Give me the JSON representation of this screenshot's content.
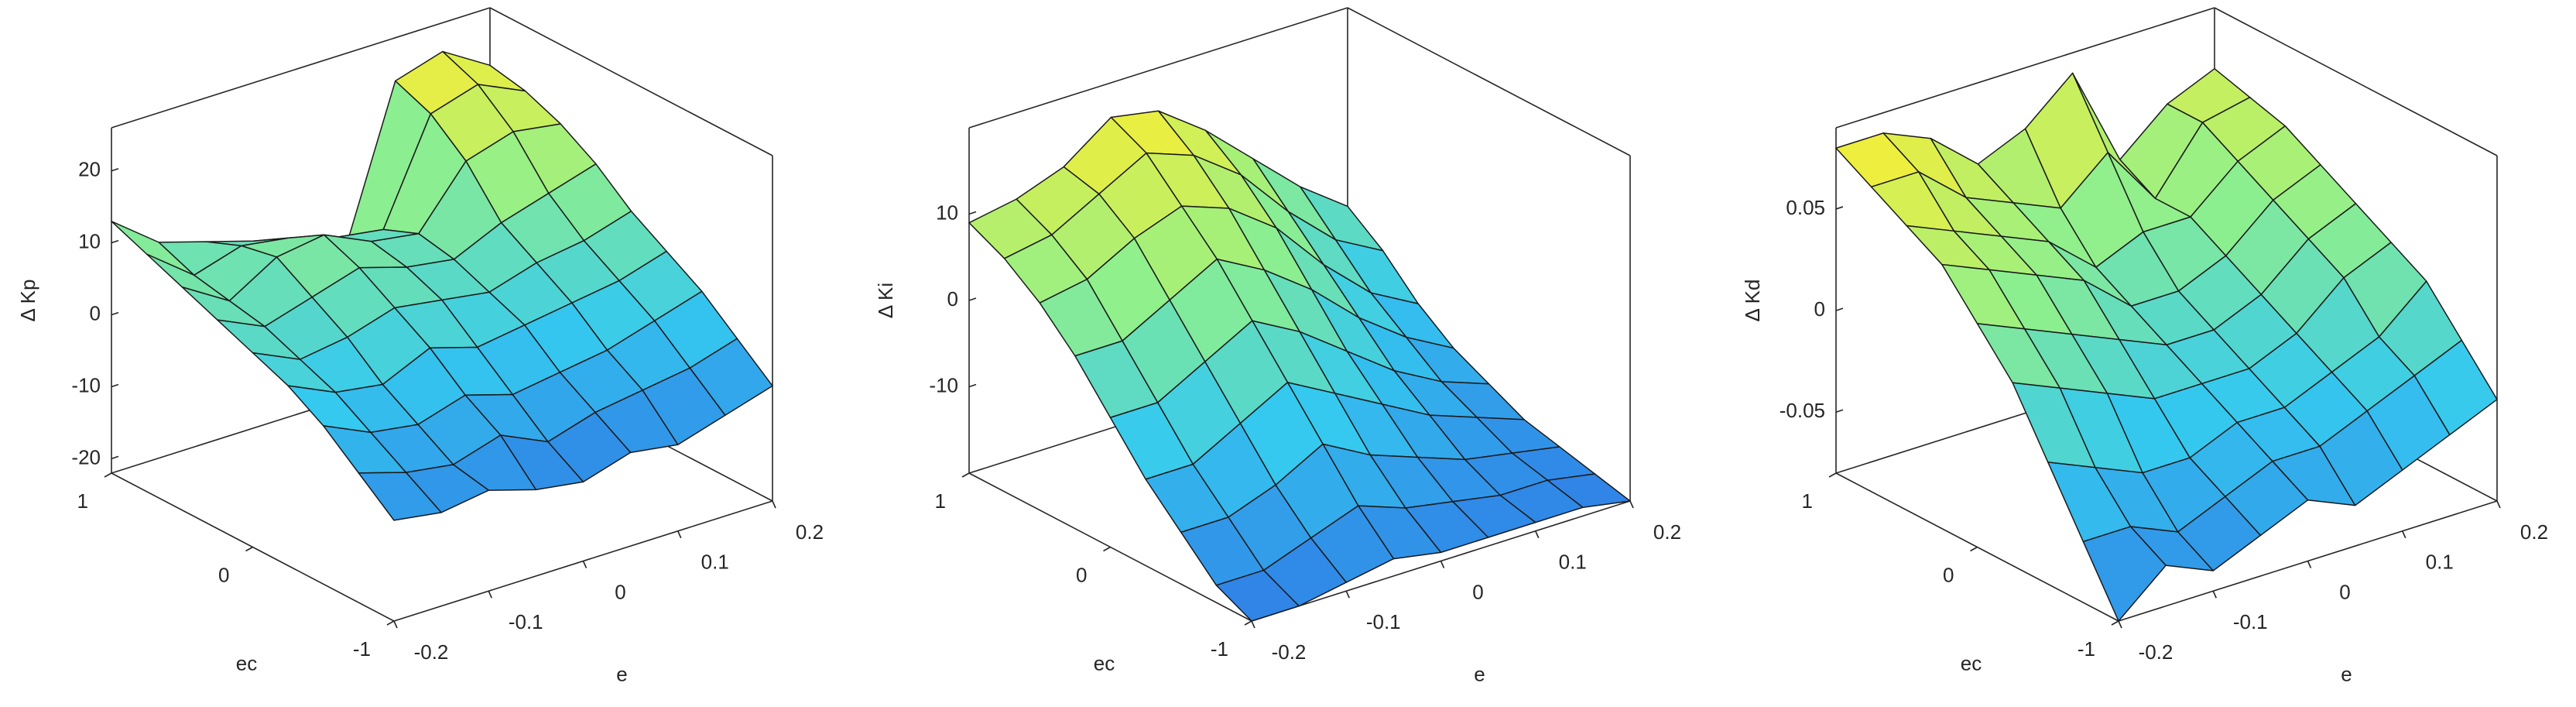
{
  "chart_data": [
    {
      "type": "surface",
      "xlabel": "e",
      "ylabel": "ec",
      "zlabel": "Δ Kp",
      "x": [
        -0.2,
        -0.15,
        -0.1,
        -0.05,
        0,
        0.05,
        0.1,
        0.15,
        0.2
      ],
      "y": [
        -1,
        -0.75,
        -0.5,
        -0.25,
        0,
        0.25,
        0.5,
        0.75,
        1
      ],
      "z": [
        [
          -8,
          -9,
          -8,
          -10,
          -11,
          -9,
          -10,
          -8,
          -6
        ],
        [
          -4,
          -6,
          -7,
          -5,
          -8,
          -6,
          -5,
          -4,
          -2
        ],
        [
          0,
          -3,
          -4,
          -2,
          -4,
          -3,
          -2,
          0,
          2
        ],
        [
          3,
          0,
          -1,
          2,
          0,
          1,
          2,
          3,
          5
        ],
        [
          5,
          2,
          3,
          5,
          4,
          3,
          5,
          6,
          8
        ],
        [
          7,
          4,
          6,
          8,
          6,
          5,
          8,
          10,
          12
        ],
        [
          9,
          5,
          9,
          10,
          7,
          6,
          14,
          16,
          15
        ],
        [
          11,
          6,
          8,
          7,
          5,
          4,
          18,
          20,
          17
        ],
        [
          13,
          8,
          6,
          4,
          2,
          0,
          20,
          22,
          18
        ]
      ],
      "xlim": [
        -0.2,
        0.2
      ],
      "ylim": [
        -1,
        1
      ],
      "zlim": [
        -22,
        26
      ],
      "xticks": [
        -0.2,
        -0.1,
        0,
        0.1,
        0.2
      ],
      "yticks": [
        -1,
        0,
        1
      ],
      "zticks": [
        -20,
        -10,
        0,
        10,
        20
      ],
      "colormap": [
        "#2f7fe6",
        "#35c9ef",
        "#8ff08c",
        "#f8ee36"
      ],
      "box": true
    },
    {
      "type": "surface",
      "xlabel": "e",
      "ylabel": "ec",
      "zlabel": "Δ Ki",
      "x": [
        -0.2,
        -0.15,
        -0.1,
        -0.05,
        0,
        0.05,
        0.1,
        0.15,
        0.2
      ],
      "y": [
        -1,
        -0.75,
        -0.5,
        -0.25,
        0,
        0.25,
        0.5,
        0.75,
        1
      ],
      "z": [
        [
          -20,
          -20,
          -19,
          -18,
          -19,
          -19,
          -19,
          -19,
          -20
        ],
        [
          -18,
          -18,
          -16,
          -14,
          -16,
          -17,
          -18,
          -18,
          -19
        ],
        [
          -14,
          -14,
          -12,
          -9,
          -12,
          -14,
          -16,
          -17,
          -18
        ],
        [
          -10,
          -10,
          -7,
          -4,
          -7,
          -10,
          -13,
          -15,
          -17
        ],
        [
          -5,
          -5,
          -2,
          1,
          -2,
          -6,
          -10,
          -13,
          -15
        ],
        [
          0,
          0,
          3,
          6,
          3,
          -1,
          -6,
          -10,
          -13
        ],
        [
          4,
          5,
          8,
          10,
          8,
          4,
          -2,
          -7,
          -10
        ],
        [
          7,
          8,
          11,
          14,
          12,
          8,
          2,
          -3,
          -6
        ],
        [
          9,
          10,
          12,
          16,
          15,
          11,
          6,
          1,
          -3
        ]
      ],
      "xlim": [
        -0.2,
        0.2
      ],
      "ylim": [
        -1,
        1
      ],
      "zlim": [
        -20,
        20
      ],
      "xticks": [
        -0.2,
        -0.1,
        0,
        0.1,
        0.2
      ],
      "yticks": [
        -1,
        0,
        1
      ],
      "zticks": [
        -10,
        0,
        10
      ],
      "colormap": [
        "#2f7fe6",
        "#35c9ef",
        "#8ff08c",
        "#f8ee36"
      ],
      "box": true
    },
    {
      "type": "surface",
      "xlabel": "e",
      "ylabel": "ec",
      "zlabel": "Δ Kd",
      "x": [
        -0.2,
        -0.15,
        -0.1,
        -0.05,
        0,
        0.05,
        0.1,
        0.15,
        0.2
      ],
      "y": [
        -1,
        -0.75,
        -0.5,
        -0.25,
        0,
        0.25,
        0.5,
        0.75,
        1
      ],
      "z": [
        [
          -0.08,
          -0.06,
          -0.07,
          -0.06,
          -0.05,
          -0.06,
          -0.05,
          -0.04,
          -0.03
        ],
        [
          -0.05,
          -0.05,
          -0.06,
          -0.05,
          -0.04,
          -0.04,
          -0.03,
          -0.02,
          -0.01
        ],
        [
          -0.02,
          -0.03,
          -0.04,
          -0.04,
          -0.03,
          -0.03,
          -0.02,
          -0.01,
          0.01
        ],
        [
          0.01,
          0,
          -0.01,
          -0.02,
          -0.02,
          -0.02,
          -0.01,
          0.01,
          0.02
        ],
        [
          0.03,
          0.02,
          0.01,
          0,
          -0.01,
          -0.01,
          0,
          0.02,
          0.03
        ],
        [
          0.05,
          0.04,
          0.03,
          0.02,
          0,
          0,
          0.01,
          0.03,
          0.04
        ],
        [
          0.06,
          0.05,
          0.04,
          0.03,
          0.01,
          0.02,
          0.02,
          0.04,
          0.05
        ],
        [
          0.07,
          0.07,
          0.05,
          0.04,
          0.03,
          0.05,
          0.02,
          0.05,
          0.055
        ],
        [
          0.08,
          0.08,
          0.07,
          0.05,
          0.06,
          0.08,
          0.03,
          0.05,
          0.06
        ]
      ],
      "xlim": [
        -0.2,
        0.2
      ],
      "ylim": [
        -1,
        1
      ],
      "zlim": [
        -0.08,
        0.09
      ],
      "xticks": [
        -0.2,
        -0.1,
        0,
        0.1,
        0.2
      ],
      "yticks": [
        -1,
        0,
        1
      ],
      "zticks": [
        -0.05,
        0,
        0.05
      ],
      "colormap": [
        "#2f7fe6",
        "#35c9ef",
        "#8ff08c",
        "#f8ee36"
      ],
      "box": true
    }
  ]
}
